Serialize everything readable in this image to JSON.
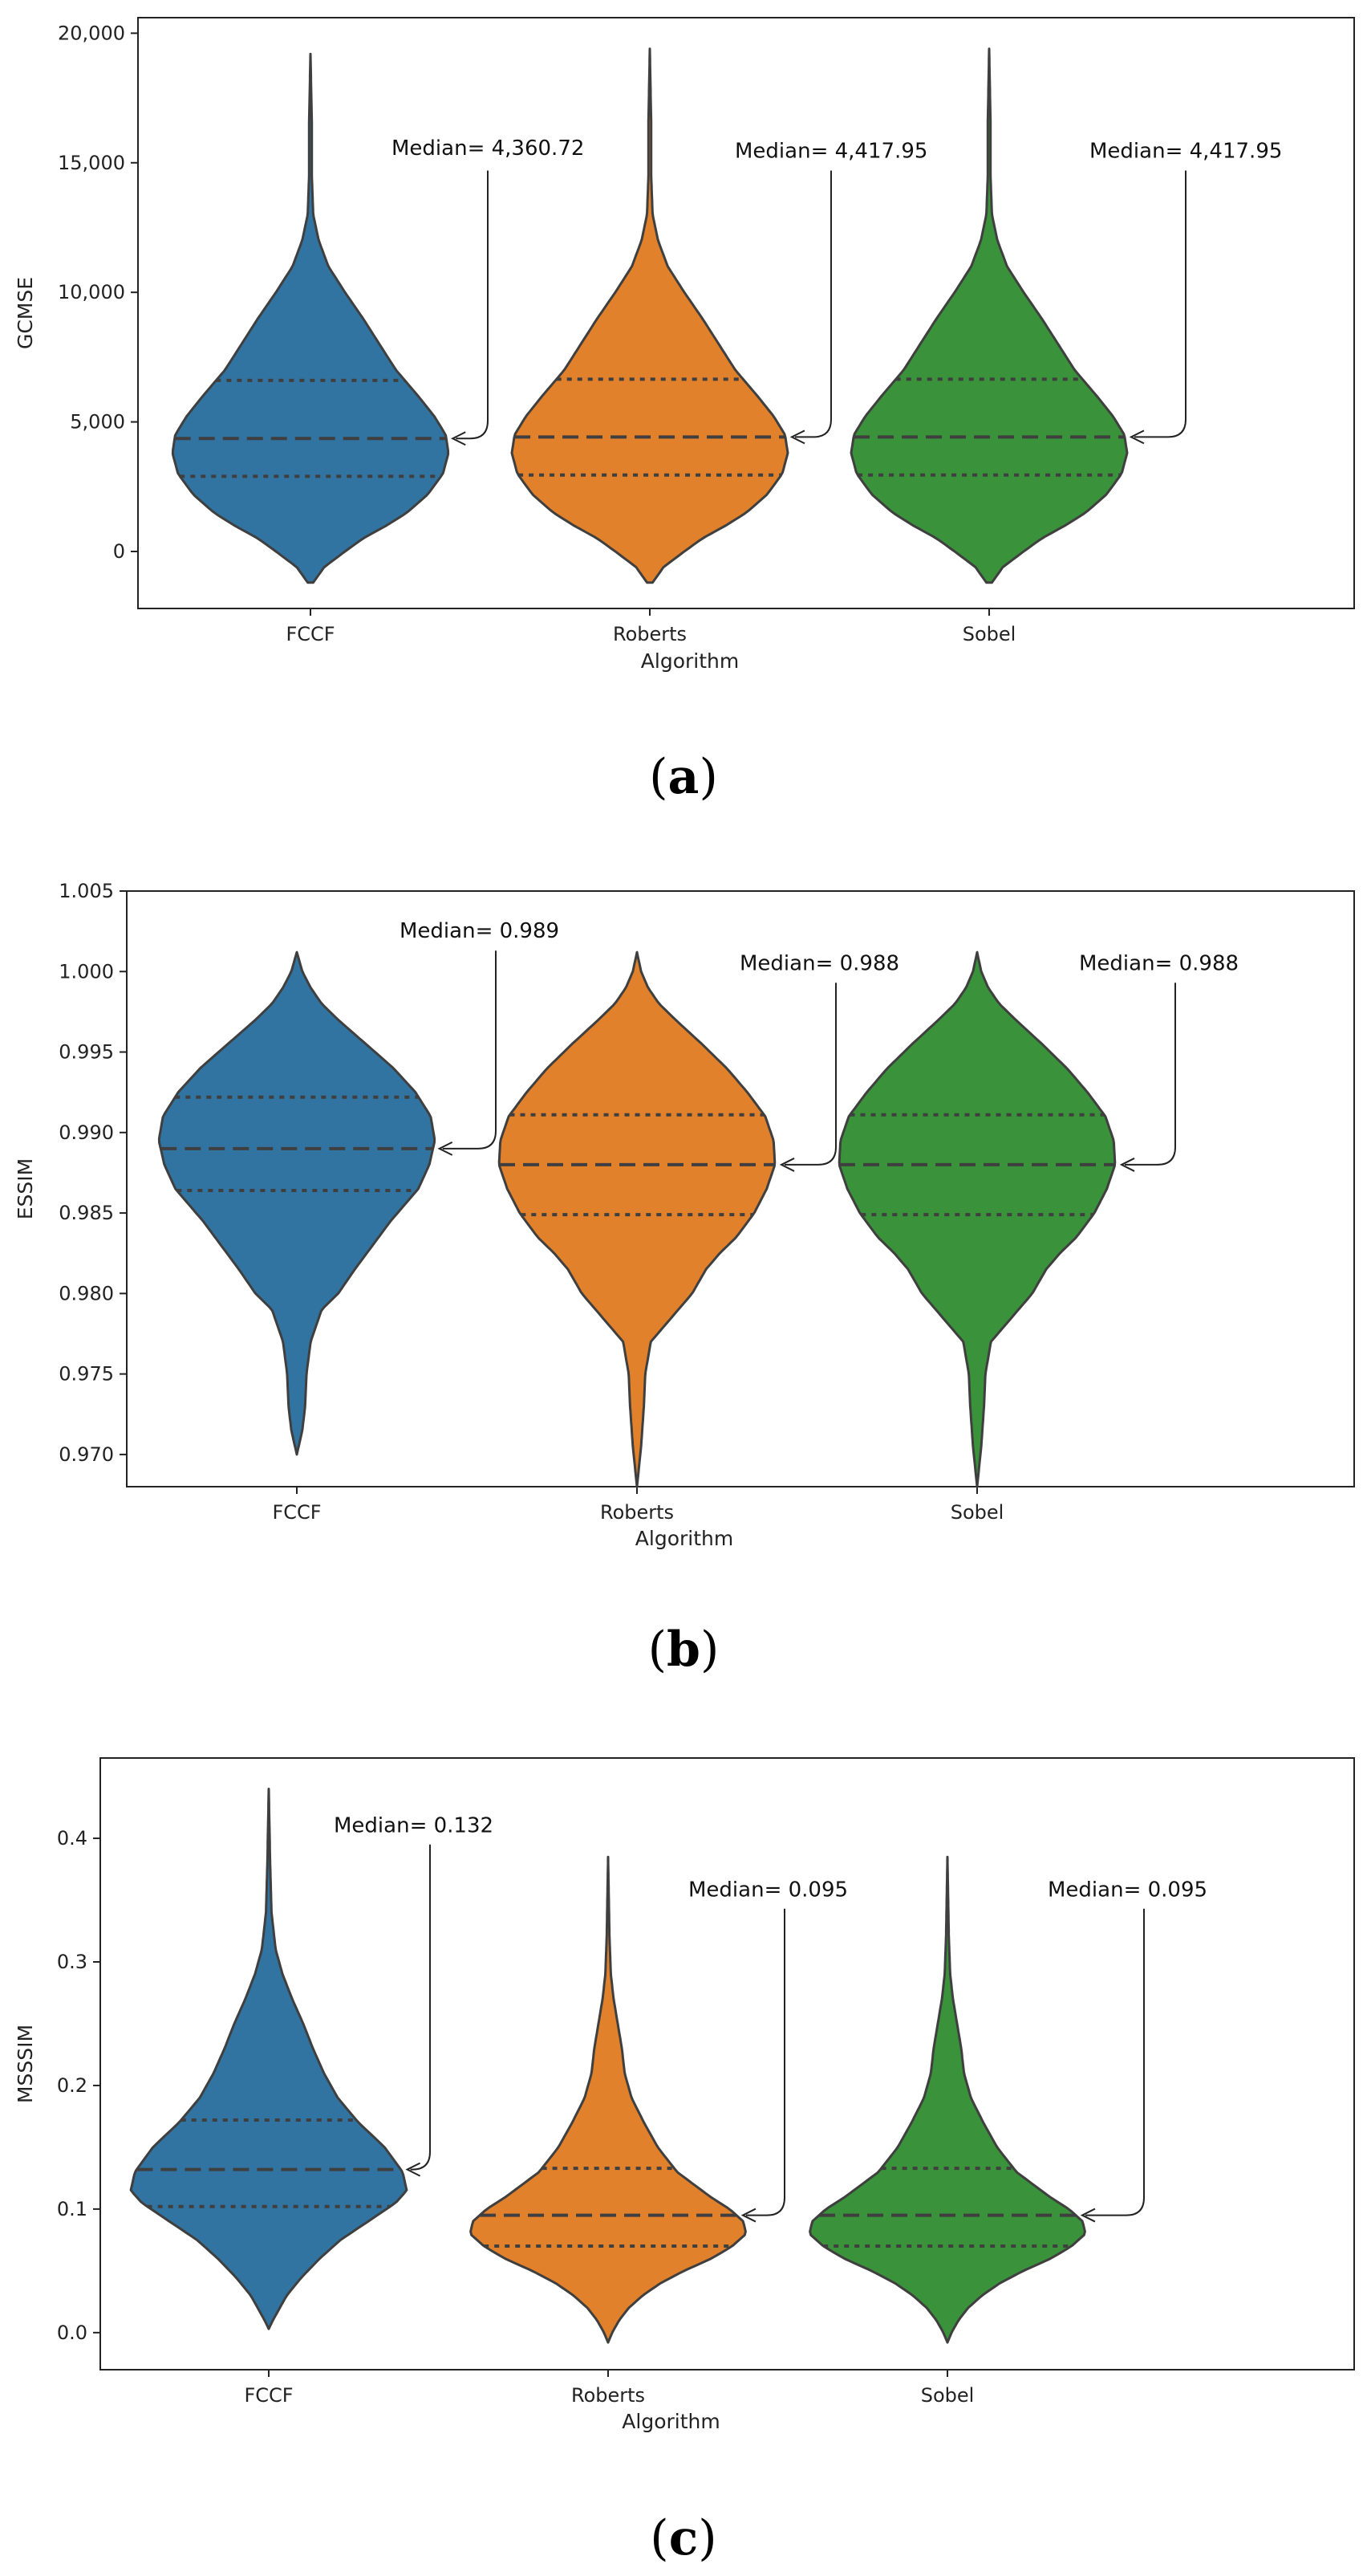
{
  "chart_data": [
    {
      "type": "violin",
      "caption_letter": "a",
      "xlabel": "Algorithm",
      "ylabel": "GCMSE",
      "categories": [
        "FCCF",
        "Roberts",
        "Sobel"
      ],
      "colors": [
        "#3274a1",
        "#e1812c",
        "#3a923a"
      ],
      "ylim": [
        -2200,
        20600
      ],
      "yticks": [
        0,
        5000,
        10000,
        15000,
        20000
      ],
      "ytick_labels": [
        "0",
        "5,000",
        "10,000",
        "15,000",
        "20,000"
      ],
      "violins": [
        {
          "min": -1200,
          "max": 19200,
          "q1": 2900,
          "median": 4360.72,
          "q3": 6600,
          "profile": [
            [
              -1200,
              0.02
            ],
            [
              -600,
              0.1
            ],
            [
              0,
              0.25
            ],
            [
              500,
              0.38
            ],
            [
              1000,
              0.55
            ],
            [
              1500,
              0.7
            ],
            [
              2200,
              0.85
            ],
            [
              3000,
              0.96
            ],
            [
              3800,
              1.0
            ],
            [
              4500,
              0.98
            ],
            [
              5200,
              0.9
            ],
            [
              6000,
              0.78
            ],
            [
              7000,
              0.62
            ],
            [
              8000,
              0.5
            ],
            [
              9000,
              0.38
            ],
            [
              10000,
              0.25
            ],
            [
              11000,
              0.13
            ],
            [
              12000,
              0.06
            ],
            [
              13000,
              0.02
            ],
            [
              14500,
              0.01
            ],
            [
              16500,
              0.01
            ],
            [
              19200,
              0.0
            ]
          ]
        },
        {
          "min": -1200,
          "max": 19400,
          "q1": 2950,
          "median": 4417.95,
          "q3": 6650,
          "profile": [
            [
              -1200,
              0.02
            ],
            [
              -600,
              0.1
            ],
            [
              0,
              0.25
            ],
            [
              500,
              0.38
            ],
            [
              1000,
              0.55
            ],
            [
              1500,
              0.7
            ],
            [
              2200,
              0.85
            ],
            [
              3000,
              0.96
            ],
            [
              3800,
              1.0
            ],
            [
              4500,
              0.98
            ],
            [
              5200,
              0.9
            ],
            [
              6000,
              0.78
            ],
            [
              7000,
              0.62
            ],
            [
              8000,
              0.5
            ],
            [
              9000,
              0.38
            ],
            [
              10000,
              0.25
            ],
            [
              11000,
              0.13
            ],
            [
              12000,
              0.06
            ],
            [
              13000,
              0.02
            ],
            [
              14500,
              0.01
            ],
            [
              16500,
              0.01
            ],
            [
              19400,
              0.0
            ]
          ]
        },
        {
          "min": -1200,
          "max": 19400,
          "q1": 2950,
          "median": 4417.95,
          "q3": 6650,
          "profile": [
            [
              -1200,
              0.02
            ],
            [
              -600,
              0.1
            ],
            [
              0,
              0.25
            ],
            [
              500,
              0.38
            ],
            [
              1000,
              0.55
            ],
            [
              1500,
              0.7
            ],
            [
              2200,
              0.85
            ],
            [
              3000,
              0.96
            ],
            [
              3800,
              1.0
            ],
            [
              4500,
              0.98
            ],
            [
              5200,
              0.9
            ],
            [
              6000,
              0.78
            ],
            [
              7000,
              0.62
            ],
            [
              8000,
              0.5
            ],
            [
              9000,
              0.38
            ],
            [
              10000,
              0.25
            ],
            [
              11000,
              0.13
            ],
            [
              12000,
              0.06
            ],
            [
              13000,
              0.02
            ],
            [
              14500,
              0.01
            ],
            [
              16500,
              0.01
            ],
            [
              19400,
              0.0
            ]
          ]
        }
      ],
      "annotations": [
        "Median= 4,360.72",
        "Median= 4,417.95",
        "Median= 4,417.95"
      ],
      "annotation_text_y": [
        15300,
        15200,
        15200
      ],
      "annotation_line_top_y": [
        14700,
        14700,
        14700
      ]
    },
    {
      "type": "violin",
      "caption_letter": "b",
      "xlabel": "Algorithm",
      "ylabel": "ESSIM",
      "categories": [
        "FCCF",
        "Roberts",
        "Sobel"
      ],
      "colors": [
        "#3274a1",
        "#e1812c",
        "#3a923a"
      ],
      "ylim": [
        0.968,
        1.005
      ],
      "yticks": [
        0.97,
        0.975,
        0.98,
        0.985,
        0.99,
        0.995,
        1.0,
        1.005
      ],
      "ytick_labels": [
        "0.970",
        "0.975",
        "0.980",
        "0.985",
        "0.990",
        "0.995",
        "1.000",
        "1.005"
      ],
      "violins": [
        {
          "min": 0.97,
          "max": 1.0012,
          "q1": 0.9864,
          "median": 0.989,
          "q3": 0.9922,
          "profile": [
            [
              0.97,
              0.0
            ],
            [
              0.9715,
              0.04
            ],
            [
              0.973,
              0.06
            ],
            [
              0.975,
              0.07
            ],
            [
              0.977,
              0.1
            ],
            [
              0.979,
              0.18
            ],
            [
              0.98,
              0.3
            ],
            [
              0.9815,
              0.42
            ],
            [
              0.983,
              0.55
            ],
            [
              0.9845,
              0.68
            ],
            [
              0.9855,
              0.78
            ],
            [
              0.9865,
              0.88
            ],
            [
              0.988,
              0.96
            ],
            [
              0.9895,
              1.0
            ],
            [
              0.991,
              0.97
            ],
            [
              0.9925,
              0.86
            ],
            [
              0.994,
              0.7
            ],
            [
              0.9955,
              0.5
            ],
            [
              0.997,
              0.3
            ],
            [
              0.998,
              0.18
            ],
            [
              0.999,
              0.1
            ],
            [
              1.0,
              0.04
            ],
            [
              1.0012,
              0.0
            ]
          ]
        },
        {
          "min": 0.968,
          "max": 1.0012,
          "q1": 0.9849,
          "median": 0.988,
          "q3": 0.9911,
          "profile": [
            [
              0.968,
              0.0
            ],
            [
              0.9705,
              0.03
            ],
            [
              0.973,
              0.05
            ],
            [
              0.975,
              0.06
            ],
            [
              0.977,
              0.1
            ],
            [
              0.978,
              0.2
            ],
            [
              0.979,
              0.3
            ],
            [
              0.98,
              0.4
            ],
            [
              0.9815,
              0.5
            ],
            [
              0.9825,
              0.6
            ],
            [
              0.9835,
              0.72
            ],
            [
              0.985,
              0.85
            ],
            [
              0.9865,
              0.94
            ],
            [
              0.988,
              1.0
            ],
            [
              0.9895,
              0.99
            ],
            [
              0.991,
              0.93
            ],
            [
              0.9925,
              0.8
            ],
            [
              0.994,
              0.65
            ],
            [
              0.9955,
              0.47
            ],
            [
              0.997,
              0.28
            ],
            [
              0.998,
              0.16
            ],
            [
              0.999,
              0.08
            ],
            [
              1.0,
              0.03
            ],
            [
              1.0012,
              0.0
            ]
          ]
        },
        {
          "min": 0.968,
          "max": 1.0012,
          "q1": 0.9849,
          "median": 0.988,
          "q3": 0.9911,
          "profile": [
            [
              0.968,
              0.0
            ],
            [
              0.9705,
              0.03
            ],
            [
              0.973,
              0.05
            ],
            [
              0.975,
              0.06
            ],
            [
              0.977,
              0.1
            ],
            [
              0.978,
              0.2
            ],
            [
              0.979,
              0.3
            ],
            [
              0.98,
              0.4
            ],
            [
              0.9815,
              0.5
            ],
            [
              0.9825,
              0.6
            ],
            [
              0.9835,
              0.72
            ],
            [
              0.985,
              0.85
            ],
            [
              0.9865,
              0.94
            ],
            [
              0.988,
              1.0
            ],
            [
              0.9895,
              0.99
            ],
            [
              0.991,
              0.93
            ],
            [
              0.9925,
              0.8
            ],
            [
              0.994,
              0.65
            ],
            [
              0.9955,
              0.47
            ],
            [
              0.997,
              0.28
            ],
            [
              0.998,
              0.16
            ],
            [
              0.999,
              0.08
            ],
            [
              1.0,
              0.03
            ],
            [
              1.0012,
              0.0
            ]
          ]
        }
      ],
      "annotations": [
        "Median= 0.989",
        "Median= 0.988",
        "Median= 0.988"
      ],
      "annotation_text_y": [
        1.0021,
        1.0001,
        1.0001
      ],
      "annotation_line_top_y": [
        1.0013,
        0.9993,
        0.9993
      ]
    },
    {
      "type": "violin",
      "caption_letter": "c",
      "xlabel": "Algorithm",
      "ylabel": "MSSSIM",
      "categories": [
        "FCCF",
        "Roberts",
        "Sobel"
      ],
      "colors": [
        "#3274a1",
        "#e1812c",
        "#3a923a"
      ],
      "ylim": [
        -0.03,
        0.465
      ],
      "yticks": [
        0.0,
        0.1,
        0.2,
        0.3,
        0.4
      ],
      "ytick_labels": [
        "0.0",
        "0.1",
        "0.2",
        "0.3",
        "0.4"
      ],
      "violins": [
        {
          "min": 0.003,
          "max": 0.44,
          "q1": 0.102,
          "median": 0.132,
          "q3": 0.172,
          "profile": [
            [
              0.003,
              0.0
            ],
            [
              0.01,
              0.03
            ],
            [
              0.02,
              0.08
            ],
            [
              0.03,
              0.13
            ],
            [
              0.045,
              0.24
            ],
            [
              0.06,
              0.37
            ],
            [
              0.075,
              0.52
            ],
            [
              0.09,
              0.72
            ],
            [
              0.105,
              0.92
            ],
            [
              0.115,
              1.0
            ],
            [
              0.13,
              0.97
            ],
            [
              0.15,
              0.84
            ],
            [
              0.17,
              0.65
            ],
            [
              0.19,
              0.5
            ],
            [
              0.21,
              0.4
            ],
            [
              0.23,
              0.32
            ],
            [
              0.25,
              0.25
            ],
            [
              0.27,
              0.17
            ],
            [
              0.29,
              0.1
            ],
            [
              0.31,
              0.05
            ],
            [
              0.34,
              0.02
            ],
            [
              0.38,
              0.01
            ],
            [
              0.44,
              0.0
            ]
          ]
        },
        {
          "min": -0.008,
          "max": 0.385,
          "q1": 0.07,
          "median": 0.095,
          "q3": 0.133,
          "profile": [
            [
              -0.008,
              0.0
            ],
            [
              0.0,
              0.03
            ],
            [
              0.01,
              0.08
            ],
            [
              0.02,
              0.15
            ],
            [
              0.03,
              0.25
            ],
            [
              0.04,
              0.38
            ],
            [
              0.05,
              0.55
            ],
            [
              0.06,
              0.75
            ],
            [
              0.07,
              0.9
            ],
            [
              0.08,
              1.0
            ],
            [
              0.09,
              0.98
            ],
            [
              0.1,
              0.88
            ],
            [
              0.11,
              0.74
            ],
            [
              0.12,
              0.62
            ],
            [
              0.13,
              0.5
            ],
            [
              0.15,
              0.36
            ],
            [
              0.17,
              0.26
            ],
            [
              0.19,
              0.17
            ],
            [
              0.21,
              0.12
            ],
            [
              0.23,
              0.1
            ],
            [
              0.25,
              0.07
            ],
            [
              0.27,
              0.04
            ],
            [
              0.29,
              0.02
            ],
            [
              0.32,
              0.01
            ],
            [
              0.385,
              0.0
            ]
          ]
        },
        {
          "min": -0.008,
          "max": 0.385,
          "q1": 0.07,
          "median": 0.095,
          "q3": 0.133,
          "profile": [
            [
              -0.008,
              0.0
            ],
            [
              0.0,
              0.03
            ],
            [
              0.01,
              0.08
            ],
            [
              0.02,
              0.15
            ],
            [
              0.03,
              0.25
            ],
            [
              0.04,
              0.38
            ],
            [
              0.05,
              0.55
            ],
            [
              0.06,
              0.75
            ],
            [
              0.07,
              0.9
            ],
            [
              0.08,
              1.0
            ],
            [
              0.09,
              0.98
            ],
            [
              0.1,
              0.88
            ],
            [
              0.11,
              0.74
            ],
            [
              0.12,
              0.62
            ],
            [
              0.13,
              0.5
            ],
            [
              0.15,
              0.36
            ],
            [
              0.17,
              0.26
            ],
            [
              0.19,
              0.17
            ],
            [
              0.21,
              0.12
            ],
            [
              0.23,
              0.1
            ],
            [
              0.25,
              0.07
            ],
            [
              0.27,
              0.04
            ],
            [
              0.29,
              0.02
            ],
            [
              0.32,
              0.01
            ],
            [
              0.385,
              0.0
            ]
          ]
        }
      ],
      "annotations": [
        "Median= 0.132",
        "Median= 0.095",
        "Median= 0.095"
      ],
      "annotation_text_y": [
        0.405,
        0.353,
        0.353
      ],
      "annotation_line_top_y": [
        0.395,
        0.343,
        0.343
      ]
    }
  ]
}
